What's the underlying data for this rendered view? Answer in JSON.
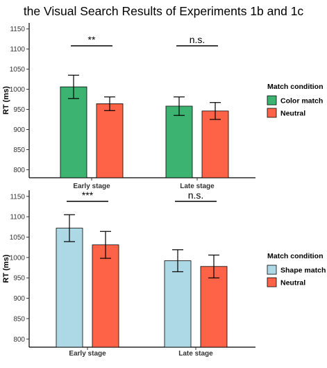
{
  "title": "the Visual Search Results of Experiments 1b and 1c",
  "chart_data": [
    {
      "type": "bar",
      "ylabel": "RT (ms)",
      "xlabel": "",
      "ylim": [
        780,
        1165
      ],
      "yticks": [
        800,
        850,
        900,
        950,
        1000,
        1050,
        1100,
        1150
      ],
      "categories": [
        "Early stage",
        "Late stage"
      ],
      "legend": {
        "title": "Match condition",
        "position": "right"
      },
      "series": [
        {
          "name": "Color match",
          "color": "#3cb371",
          "values": [
            1006,
            958
          ],
          "error": [
            29,
            23
          ]
        },
        {
          "name": "Neutral",
          "color": "#ff6347",
          "values": [
            964,
            946
          ],
          "error": [
            17,
            21
          ]
        }
      ],
      "significance": [
        {
          "category": "Early stage",
          "label": "**"
        },
        {
          "category": "Late stage",
          "label": "n.s."
        }
      ]
    },
    {
      "type": "bar",
      "ylabel": "RT (ms)",
      "xlabel": "",
      "ylim": [
        780,
        1165
      ],
      "yticks": [
        800,
        850,
        900,
        950,
        1000,
        1050,
        1100,
        1150
      ],
      "categories": [
        "Early stage",
        "Late stage"
      ],
      "legend": {
        "title": "Match condition",
        "position": "right"
      },
      "series": [
        {
          "name": "Shape match",
          "color": "#add8e6",
          "values": [
            1072,
            992
          ],
          "error": [
            33,
            27
          ]
        },
        {
          "name": "Neutral",
          "color": "#ff6347",
          "values": [
            1031,
            978
          ],
          "error": [
            33,
            28
          ]
        }
      ],
      "significance": [
        {
          "category": "Early stage",
          "label": "***"
        },
        {
          "category": "Late stage",
          "label": "n.s."
        }
      ]
    }
  ]
}
